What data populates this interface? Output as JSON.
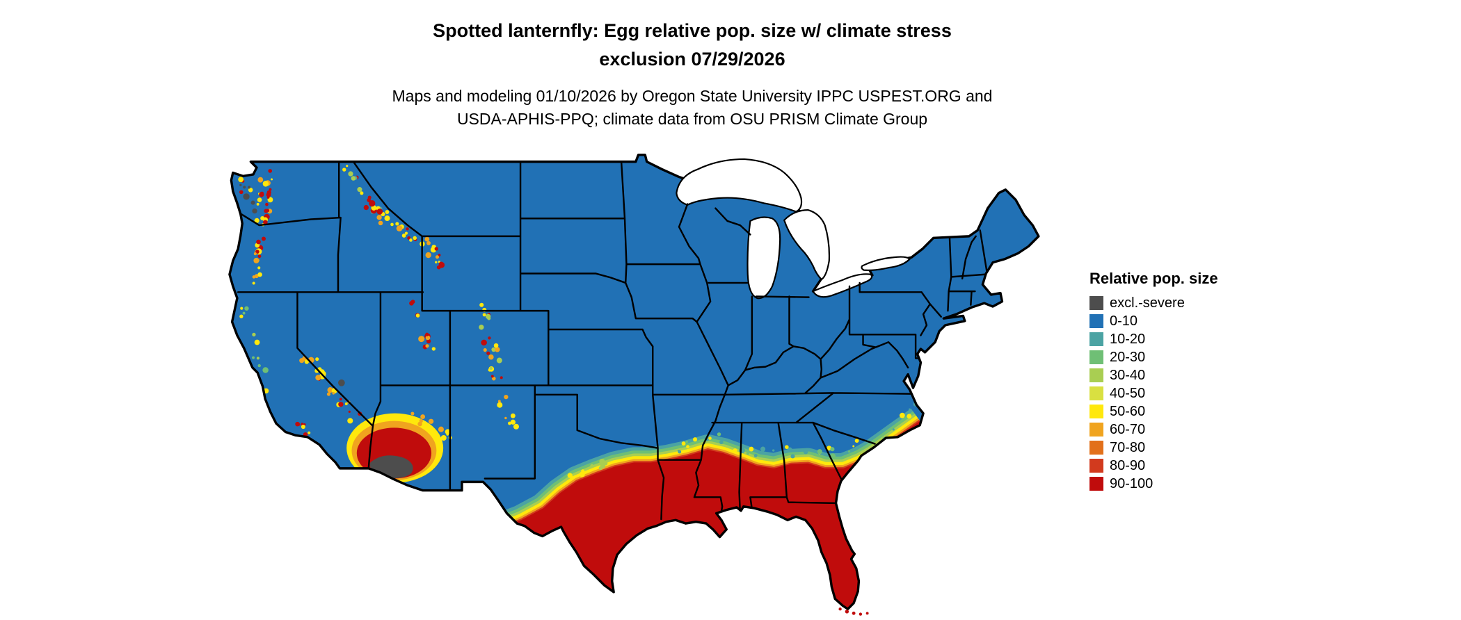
{
  "header": {
    "title_lines": [
      "Spotted lanternfly: Egg relative pop. size w/ climate stress",
      "exclusion 07/29/2026"
    ],
    "subtitle_lines": [
      "Maps and modeling 01/10/2026 by Oregon State University IPPC USPEST.ORG and",
      "USDA-APHIS-PPQ; climate data from OSU PRISM Climate Group"
    ]
  },
  "legend": {
    "title": "Relative pop. size",
    "items": [
      {
        "label": "excl.-severe",
        "color": "#4D4D4D"
      },
      {
        "label": "0-10",
        "color": "#2171B5"
      },
      {
        "label": "10-20",
        "color": "#4BA3A3"
      },
      {
        "label": "20-30",
        "color": "#6FBF75"
      },
      {
        "label": "30-40",
        "color": "#A9CE52"
      },
      {
        "label": "40-50",
        "color": "#D9E041"
      },
      {
        "label": "50-60",
        "color": "#FFE80C"
      },
      {
        "label": "60-70",
        "color": "#F0A41F"
      },
      {
        "label": "70-80",
        "color": "#E2701B"
      },
      {
        "label": "80-90",
        "color": "#D23A1E"
      },
      {
        "label": "90-100",
        "color": "#C00C0C"
      }
    ]
  },
  "map": {
    "land_base_color": "#2171B5",
    "water_color": "#FFFFFF",
    "boundary_color": "#000000"
  }
}
